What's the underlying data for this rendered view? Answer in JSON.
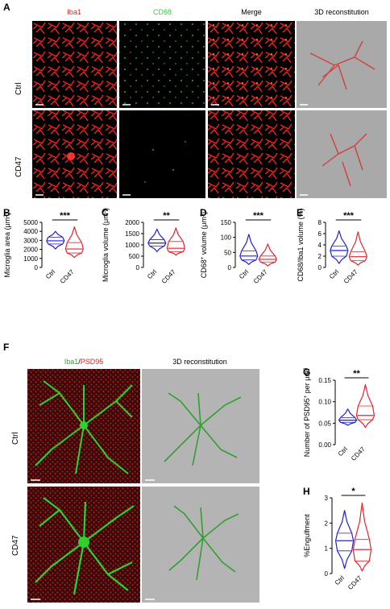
{
  "panelA": {
    "label": "A",
    "columns": [
      "Iba1",
      "CD68",
      "Merge",
      "3D reconstitution"
    ],
    "rows": [
      "Ctrl",
      "CD47"
    ]
  },
  "panelF": {
    "label": "F",
    "col1a": "Iba1",
    "col1sep": "/",
    "col1b": "PSD95",
    "col2": "3D reconstitution",
    "rows": [
      "Ctrl",
      "CD47"
    ]
  },
  "colors": {
    "ctrl": "#1f1fd6",
    "cd47": "#e0252b",
    "iba1": "#ff2a2a",
    "cd68": "#2fd62f",
    "gray": "#a9a9a9"
  },
  "chart_data": [
    {
      "id": "B",
      "label": "B",
      "type": "violin",
      "categories": [
        "Ctrl",
        "CD47"
      ],
      "ylabel_main": "Microglia area (μm",
      "ylabel_sup": "2",
      "ylabel_end": ")",
      "ylim": [
        0,
        5000
      ],
      "yticks": [
        0,
        1000,
        2000,
        3000,
        4000,
        5000
      ],
      "significance": "***",
      "series": [
        {
          "name": "Ctrl",
          "min": 2050,
          "q1": 2600,
          "median": 2950,
          "q3": 3350,
          "max": 4000
        },
        {
          "name": "CD47",
          "min": 1100,
          "q1": 1600,
          "median": 2050,
          "q3": 2750,
          "max": 4500
        }
      ]
    },
    {
      "id": "C",
      "label": "C",
      "type": "violin",
      "categories": [
        "Ctrl",
        "CD47"
      ],
      "ylabel_main": "Microglia volume (μm",
      "ylabel_sup": "3",
      "ylabel_end": ")",
      "ylim": [
        0,
        2000
      ],
      "yticks": [
        0,
        500,
        1000,
        1500,
        2000
      ],
      "significance": "**",
      "series": [
        {
          "name": "Ctrl",
          "min": 700,
          "q1": 950,
          "median": 1080,
          "q3": 1230,
          "max": 1700
        },
        {
          "name": "CD47",
          "min": 550,
          "q1": 700,
          "median": 850,
          "q3": 1150,
          "max": 1750
        }
      ]
    },
    {
      "id": "D",
      "label": "D",
      "type": "violin",
      "categories": [
        "Ctrl",
        "CD47"
      ],
      "ylabel_main": "CD68",
      "ylabel_sup": "+",
      "ylabel_end": " volume (μm",
      "ylabel_sup2": "3",
      "ylabel_end2": ")",
      "ylim": [
        0,
        150
      ],
      "yticks": [
        0,
        50,
        100,
        150
      ],
      "significance": "***",
      "series": [
        {
          "name": "Ctrl",
          "min": 10,
          "q1": 25,
          "median": 38,
          "q3": 55,
          "max": 110
        },
        {
          "name": "CD47",
          "min": 5,
          "q1": 18,
          "median": 27,
          "q3": 38,
          "max": 78
        }
      ]
    },
    {
      "id": "E",
      "label": "E",
      "type": "violin",
      "categories": [
        "Ctrl",
        "CD47"
      ],
      "ylabel_main": "CD68/Iba1 volume (%)",
      "ylim": [
        0,
        8
      ],
      "yticks": [
        0,
        2,
        4,
        6,
        8
      ],
      "significance": "***",
      "series": [
        {
          "name": "Ctrl",
          "min": 0.7,
          "q1": 2.0,
          "median": 3.0,
          "q3": 3.8,
          "max": 6.5
        },
        {
          "name": "CD47",
          "min": 0.4,
          "q1": 1.2,
          "median": 1.9,
          "q3": 2.8,
          "max": 6.3
        }
      ]
    },
    {
      "id": "G",
      "label": "G",
      "type": "violin",
      "categories": [
        "Ctrl",
        "CD47"
      ],
      "ylabel_main": "Number of PSD95",
      "ylabel_sup": "+",
      "ylabel_end": " per μm",
      "ylabel_sup2": "3",
      "ylim": [
        0,
        0.15
      ],
      "yticks": [
        0,
        0.05,
        0.1,
        0.15
      ],
      "ytick_labels": [
        "0.00",
        "0.05",
        "0.10",
        "0.15"
      ],
      "significance": "**",
      "series": [
        {
          "name": "Ctrl",
          "min": 0.045,
          "q1": 0.052,
          "median": 0.057,
          "q3": 0.063,
          "max": 0.083
        },
        {
          "name": "CD47",
          "min": 0.04,
          "q1": 0.058,
          "median": 0.068,
          "q3": 0.09,
          "max": 0.14
        }
      ]
    },
    {
      "id": "H",
      "label": "H",
      "type": "violin",
      "categories": [
        "Ctrl",
        "CD47"
      ],
      "ylabel_main": "%Engulfment",
      "ylim": [
        0,
        3
      ],
      "yticks": [
        0,
        1,
        2,
        3
      ],
      "significance": "*",
      "series": [
        {
          "name": "Ctrl",
          "min": 0.2,
          "q1": 0.9,
          "median": 1.3,
          "q3": 1.6,
          "max": 2.5
        },
        {
          "name": "CD47",
          "min": 0.1,
          "q1": 0.5,
          "median": 0.95,
          "q3": 1.35,
          "max": 2.8
        }
      ]
    }
  ]
}
